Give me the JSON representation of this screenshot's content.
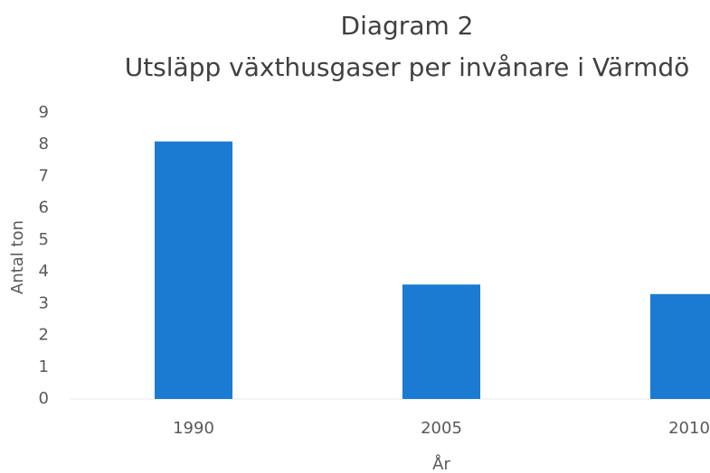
{
  "chart_data": {
    "type": "bar",
    "title": "Diagram 2",
    "subtitle": "Utsläpp växthusgaser per invånare i Värmdö",
    "x_label": "År",
    "y_label": "Antal ton",
    "categories": [
      "1990",
      "2005",
      "2010"
    ],
    "values": [
      8.1,
      3.6,
      3.3
    ],
    "color": "#1b7bd3",
    "ylim": [
      0,
      9
    ],
    "yticks": [
      0,
      1,
      2,
      3,
      4,
      5,
      6,
      7,
      8,
      9
    ],
    "grid": false
  }
}
